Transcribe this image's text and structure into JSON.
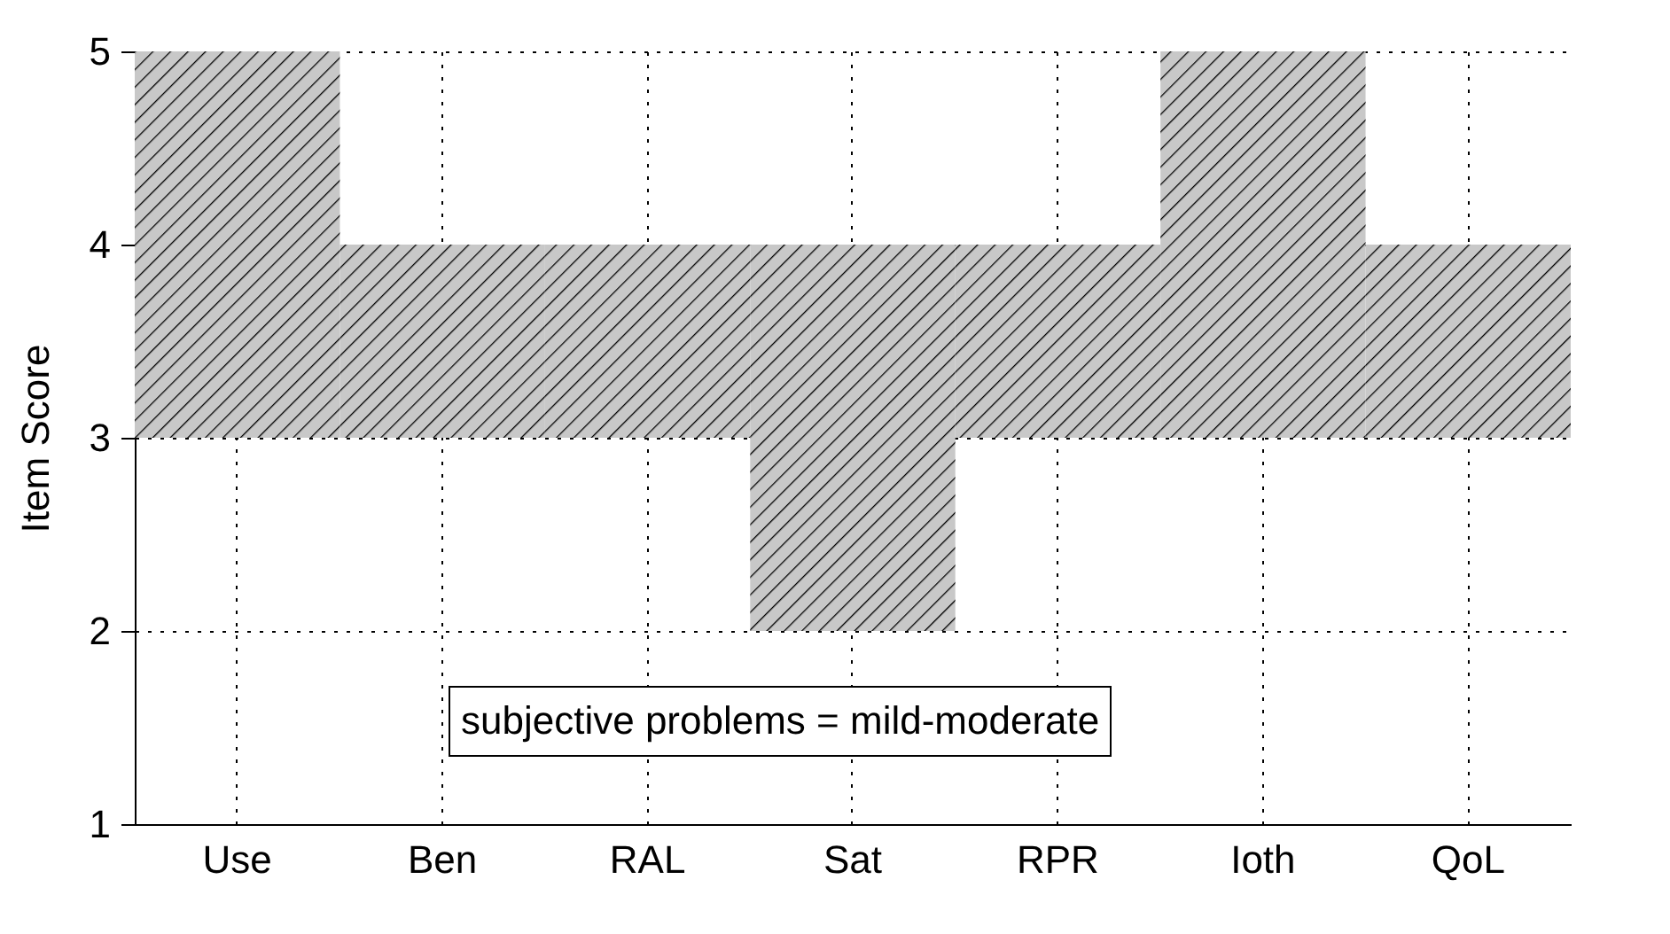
{
  "chart_data": {
    "type": "bar",
    "ylabel": "Item Score",
    "categories": [
      "Use",
      "Ben",
      "RAL",
      "Sat",
      "RPR",
      "Ioth",
      "QoL"
    ],
    "base": [
      3,
      3,
      3,
      2,
      3,
      3,
      3
    ],
    "values": [
      2,
      1,
      1,
      2,
      1,
      2,
      1
    ],
    "color": "#c8c8c8",
    "ylim": [
      1,
      5
    ],
    "yticks": [
      1,
      2,
      3,
      4,
      5
    ],
    "grid": true,
    "annotations": [
      "subjective problems = mild-moderate"
    ]
  }
}
